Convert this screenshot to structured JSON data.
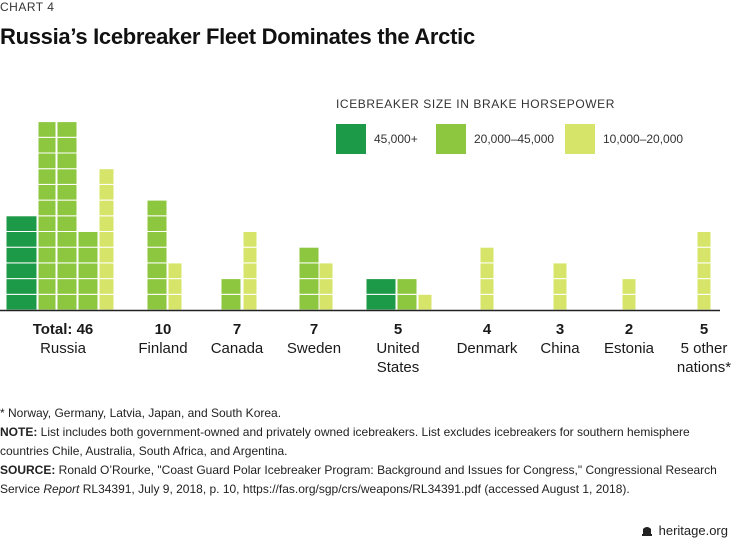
{
  "kicker": "CHART 4",
  "title": "Russia’s Icebreaker Fleet Dominates the Arctic",
  "chart_data": {
    "type": "bar",
    "legend_title": "ICEBREAKER SIZE IN BRAKE HORSEPOWER",
    "legend_placement": "top-right",
    "series": [
      {
        "name": "45,000+",
        "color": "#1c9a48"
      },
      {
        "name": "20,000–45,000",
        "color": "#8dc63f"
      },
      {
        "name": "10,000–20,000",
        "color": "#d6e56a"
      }
    ],
    "unit": "icebreakers",
    "categories": [
      {
        "total": "Total: 46",
        "name": "Russia",
        "bars": [
          {
            "series": 0,
            "value": 6
          },
          {
            "series": 1,
            "value": 12
          },
          {
            "series": 1,
            "value": 5
          },
          {
            "series": 2,
            "value": 7
          },
          {
            "series": 2,
            "value": 9
          },
          {
            "series": 2,
            "value": 7
          }
        ]
      },
      {
        "total": "10",
        "name": "Finland",
        "bars": [
          {
            "series": 1,
            "value": 7
          },
          {
            "series": 2,
            "value": 3
          }
        ]
      },
      {
        "total": "7",
        "name": "Canada",
        "bars": [
          {
            "series": 1,
            "value": 2
          },
          {
            "series": 2,
            "value": 5
          }
        ]
      },
      {
        "total": "7",
        "name": "Sweden",
        "bars": [
          {
            "series": 1,
            "value": 4
          },
          {
            "series": 2,
            "value": 3
          }
        ]
      },
      {
        "total": "5",
        "name": "United States",
        "bars": [
          {
            "series": 0,
            "value": 2
          },
          {
            "series": 1,
            "value": 2
          },
          {
            "series": 2,
            "value": 1
          }
        ]
      },
      {
        "total": "4",
        "name": "Denmark",
        "bars": [
          {
            "series": 2,
            "value": 4
          }
        ]
      },
      {
        "total": "3",
        "name": "China",
        "bars": [
          {
            "series": 2,
            "value": 3
          }
        ]
      },
      {
        "total": "2",
        "name": "Estonia",
        "bars": [
          {
            "series": 2,
            "value": 2
          }
        ]
      },
      {
        "total": "5",
        "name": "5 other nations*",
        "bars": [
          {
            "series": 2,
            "value": 5
          }
        ]
      }
    ]
  },
  "notes": {
    "footnote": "* Norway, Germany, Latvia, Japan, and South Korea.",
    "note_label": "NOTE:",
    "note_text": " List includes both government-owned and privately owned icebreakers. List excludes icebreakers for southern hemisphere countries Chile, Australia, South Africa, and Argentina.",
    "source_label": "SOURCE:",
    "source_text_1": " Ronald O’Rourke, \"Coast Guard Polar Icebreaker Program: Background and Issues for Congress,\" Congressional Research Service ",
    "source_report": "Report",
    "source_text_2": " RL34391, July 9, 2018, p. 10, https://fas.org/sgp/crs/weapons/RL34391.pdf (accessed August 1, 2018)."
  },
  "footer": {
    "site": "heritage.org",
    "icon": "bell-icon"
  }
}
